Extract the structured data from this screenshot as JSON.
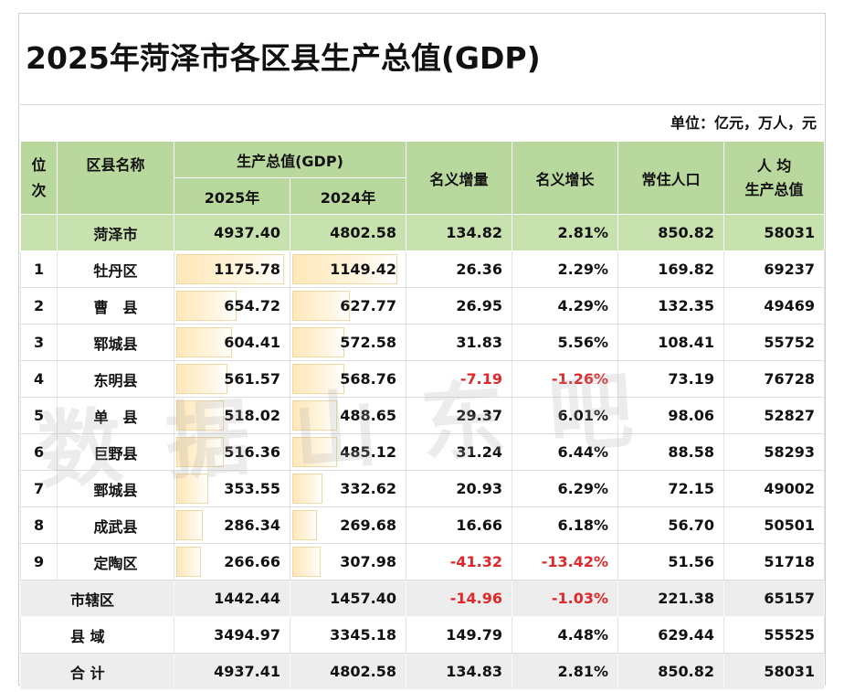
{
  "title": "2025年菏泽市各区县生产总值(GDP)",
  "unit_note": "单位：亿元，万人，元",
  "watermark": "数据山东吧",
  "headers": {
    "rank": "位次",
    "name": "区县名称",
    "gdp_group": "生产总值(GDP)",
    "gdp_2025": "2025年",
    "gdp_2024": "2024年",
    "nominal_increase": "名义增量",
    "nominal_growth": "名义增长",
    "population": "常住人口",
    "per_capita": "人 均\n生产总值"
  },
  "city_row": {
    "name": "菏泽市",
    "gdp_2025": "4937.40",
    "gdp_2024": "4802.58",
    "increase": "134.82",
    "growth": "2.81%",
    "population": "850.82",
    "per_capita": "58031"
  },
  "rows": [
    {
      "rank": "1",
      "name": "牡丹区",
      "gdp_2025": "1175.78",
      "gdp_2024": "1149.42",
      "increase": "26.36",
      "growth": "2.29%",
      "population": "169.82",
      "per_capita": "69237",
      "bar_2025": 1175.78,
      "bar_2024": 1149.42,
      "negative": false
    },
    {
      "rank": "2",
      "name": "曹　县",
      "gdp_2025": "654.72",
      "gdp_2024": "627.77",
      "increase": "26.95",
      "growth": "4.29%",
      "population": "132.35",
      "per_capita": "49469",
      "bar_2025": 654.72,
      "bar_2024": 627.77,
      "negative": false
    },
    {
      "rank": "3",
      "name": "郓城县",
      "gdp_2025": "604.41",
      "gdp_2024": "572.58",
      "increase": "31.83",
      "growth": "5.56%",
      "population": "108.41",
      "per_capita": "55752",
      "bar_2025": 604.41,
      "bar_2024": 572.58,
      "negative": false
    },
    {
      "rank": "4",
      "name": "东明县",
      "gdp_2025": "561.57",
      "gdp_2024": "568.76",
      "increase": "-7.19",
      "growth": "-1.26%",
      "population": "73.19",
      "per_capita": "76728",
      "bar_2025": 561.57,
      "bar_2024": 568.76,
      "negative": true
    },
    {
      "rank": "5",
      "name": "单　县",
      "gdp_2025": "518.02",
      "gdp_2024": "488.65",
      "increase": "29.37",
      "growth": "6.01%",
      "population": "98.06",
      "per_capita": "52827",
      "bar_2025": 518.02,
      "bar_2024": 488.65,
      "negative": false
    },
    {
      "rank": "6",
      "name": "巨野县",
      "gdp_2025": "516.36",
      "gdp_2024": "485.12",
      "increase": "31.24",
      "growth": "6.44%",
      "population": "88.58",
      "per_capita": "58293",
      "bar_2025": 516.36,
      "bar_2024": 485.12,
      "negative": false
    },
    {
      "rank": "7",
      "name": "鄄城县",
      "gdp_2025": "353.55",
      "gdp_2024": "332.62",
      "increase": "20.93",
      "growth": "6.29%",
      "population": "72.15",
      "per_capita": "49002",
      "bar_2025": 353.55,
      "bar_2024": 332.62,
      "negative": false
    },
    {
      "rank": "8",
      "name": "成武县",
      "gdp_2025": "286.34",
      "gdp_2024": "269.68",
      "increase": "16.66",
      "growth": "6.18%",
      "population": "56.70",
      "per_capita": "50501",
      "bar_2025": 286.34,
      "bar_2024": 269.68,
      "negative": false
    },
    {
      "rank": "9",
      "name": "定陶区",
      "gdp_2025": "266.66",
      "gdp_2024": "307.98",
      "increase": "-41.32",
      "growth": "-13.42%",
      "population": "51.56",
      "per_capita": "51718",
      "bar_2025": 266.66,
      "bar_2024": 307.98,
      "negative": true
    }
  ],
  "summary_rows": [
    {
      "name": "市辖区",
      "gdp_2025": "1442.44",
      "gdp_2024": "1457.40",
      "increase": "-14.96",
      "growth": "-1.03%",
      "population": "221.38",
      "per_capita": "65157",
      "negative": true
    },
    {
      "name": "县 域",
      "gdp_2025": "3494.97",
      "gdp_2024": "3345.18",
      "increase": "149.79",
      "growth": "4.48%",
      "population": "629.44",
      "per_capita": "55525",
      "negative": false
    },
    {
      "name": "合 计",
      "gdp_2025": "4937.41",
      "gdp_2024": "4802.58",
      "increase": "134.83",
      "growth": "2.81%",
      "population": "850.82",
      "per_capita": "58031",
      "negative": false
    }
  ],
  "colors": {
    "header_green": "#b9d89e",
    "city_green": "#c8e2af",
    "negative_red": "#e0282b",
    "databar": "#ffe7b8"
  }
}
